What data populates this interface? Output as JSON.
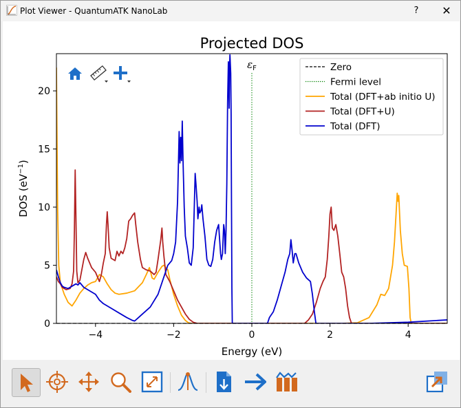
{
  "window": {
    "title": "Plot Viewer - QuantumATK NanoLab",
    "help_label": "?",
    "close_label": "✕"
  },
  "plot_toolbar": {
    "items": [
      {
        "name": "home-icon"
      },
      {
        "name": "ruler-icon"
      },
      {
        "name": "add-icon"
      }
    ]
  },
  "bottom_toolbar": {
    "items": [
      {
        "name": "select-cursor-icon",
        "active": true
      },
      {
        "name": "crosshair-icon"
      },
      {
        "name": "pan-icon"
      },
      {
        "name": "zoom-icon"
      },
      {
        "name": "fit-view-icon"
      },
      {
        "name": "peak-analysis-icon"
      },
      {
        "name": "export-icon"
      },
      {
        "name": "arrow-icon"
      },
      {
        "name": "data-icon"
      },
      {
        "name": "popout-icon"
      }
    ]
  },
  "colors": {
    "dft_u_abinitio": "#ffa500",
    "dft_u": "#b22222",
    "dft": "#0000cd",
    "fermi": "#008000",
    "zero": "#000000",
    "toolbar_orange": "#d2691e",
    "toolbar_blue": "#1e6fc8"
  },
  "chart_data": {
    "type": "line",
    "title": "Projected DOS",
    "xlabel": "Energy (eV)",
    "ylabel_main": "DOS (eV",
    "ylabel_sup": "−1",
    "ylabel_end": ")",
    "xlim": [
      -5,
      5
    ],
    "ylim": [
      0,
      23.2
    ],
    "xticks": [
      -4,
      -2,
      0,
      2,
      4
    ],
    "xtick_labels": [
      "−4",
      "−2",
      "0",
      "2",
      "4"
    ],
    "yticks": [
      0,
      5,
      10,
      15,
      20
    ],
    "ytick_labels": [
      "0",
      "5",
      "10",
      "15",
      "20"
    ],
    "fermi_level": 0,
    "fermi_label": "ε",
    "fermi_label_sub": "F",
    "legend_position": "top-right",
    "legend": [
      {
        "label": "Zero",
        "style": "dashed",
        "color": "#000000"
      },
      {
        "label": "Fermi level",
        "style": "dotted",
        "color": "#008000"
      },
      {
        "label": "Total (DFT+ab initio U)",
        "style": "solid",
        "color": "#ffa500"
      },
      {
        "label": "Total (DFT+U)",
        "style": "solid",
        "color": "#b22222"
      },
      {
        "label": "Total (DFT)",
        "style": "solid",
        "color": "#0000cd"
      }
    ],
    "series": [
      {
        "name": "Total (DFT+ab initio U)",
        "color": "#ffa500",
        "points": [
          [
            -5.0,
            22.0
          ],
          [
            -4.97,
            10.0
          ],
          [
            -4.94,
            5.0
          ],
          [
            -4.9,
            3.5
          ],
          [
            -4.8,
            2.5
          ],
          [
            -4.7,
            1.8
          ],
          [
            -4.6,
            1.5
          ],
          [
            -4.5,
            2.0
          ],
          [
            -4.4,
            2.6
          ],
          [
            -4.3,
            3.0
          ],
          [
            -4.2,
            3.3
          ],
          [
            -4.1,
            3.5
          ],
          [
            -4.0,
            3.6
          ],
          [
            -3.9,
            4.2
          ],
          [
            -3.8,
            4.0
          ],
          [
            -3.7,
            3.4
          ],
          [
            -3.6,
            2.9
          ],
          [
            -3.5,
            2.6
          ],
          [
            -3.4,
            2.5
          ],
          [
            -3.2,
            2.6
          ],
          [
            -3.0,
            2.8
          ],
          [
            -2.8,
            3.5
          ],
          [
            -2.7,
            4.2
          ],
          [
            -2.62,
            4.8
          ],
          [
            -2.55,
            3.9
          ],
          [
            -2.5,
            3.8
          ],
          [
            -2.4,
            4.4
          ],
          [
            -2.3,
            4.9
          ],
          [
            -2.25,
            5.0
          ],
          [
            -2.2,
            4.8
          ],
          [
            -2.15,
            4.6
          ],
          [
            -2.1,
            3.8
          ],
          [
            -2.0,
            2.5
          ],
          [
            -1.9,
            1.5
          ],
          [
            -1.8,
            0.7
          ],
          [
            -1.7,
            0.25
          ],
          [
            -1.62,
            0.05
          ],
          [
            -1.55,
            0.0
          ],
          [
            1.5,
            0.0
          ],
          [
            2.3,
            0.0
          ],
          [
            2.7,
            0.05
          ],
          [
            3.0,
            0.5
          ],
          [
            3.2,
            1.6
          ],
          [
            3.3,
            2.5
          ],
          [
            3.4,
            2.4
          ],
          [
            3.5,
            3.0
          ],
          [
            3.6,
            5.0
          ],
          [
            3.65,
            7.0
          ],
          [
            3.7,
            10.0
          ],
          [
            3.72,
            11.2
          ],
          [
            3.74,
            10.5
          ],
          [
            3.76,
            11.0
          ],
          [
            3.8,
            8.0
          ],
          [
            3.85,
            6.0
          ],
          [
            3.9,
            5.0
          ],
          [
            3.98,
            4.9
          ],
          [
            4.02,
            3.0
          ],
          [
            4.05,
            0.5
          ],
          [
            4.08,
            0.0
          ],
          [
            5.0,
            0.0
          ]
        ]
      },
      {
        "name": "Total (DFT+U)",
        "color": "#b22222",
        "points": [
          [
            -5.0,
            4.0
          ],
          [
            -4.95,
            3.6
          ],
          [
            -4.9,
            3.4
          ],
          [
            -4.85,
            3.1
          ],
          [
            -4.8,
            3.0
          ],
          [
            -4.75,
            2.9
          ],
          [
            -4.7,
            2.95
          ],
          [
            -4.65,
            3.0
          ],
          [
            -4.6,
            3.4
          ],
          [
            -4.56,
            4.5
          ],
          [
            -4.54,
            8.0
          ],
          [
            -4.52,
            13.2
          ],
          [
            -4.5,
            9.0
          ],
          [
            -4.48,
            4.5
          ],
          [
            -4.45,
            3.5
          ],
          [
            -4.4,
            3.7
          ],
          [
            -4.3,
            5.5
          ],
          [
            -4.25,
            6.1
          ],
          [
            -4.2,
            5.6
          ],
          [
            -4.1,
            4.8
          ],
          [
            -4.0,
            4.4
          ],
          [
            -3.95,
            4.0
          ],
          [
            -3.9,
            3.6
          ],
          [
            -3.85,
            4.2
          ],
          [
            -3.8,
            5.2
          ],
          [
            -3.75,
            6.0
          ],
          [
            -3.72,
            8.5
          ],
          [
            -3.7,
            9.6
          ],
          [
            -3.68,
            8.5
          ],
          [
            -3.65,
            6.5
          ],
          [
            -3.6,
            5.6
          ],
          [
            -3.5,
            5.4
          ],
          [
            -3.45,
            6.2
          ],
          [
            -3.4,
            5.8
          ],
          [
            -3.35,
            6.2
          ],
          [
            -3.3,
            6.0
          ],
          [
            -3.25,
            6.5
          ],
          [
            -3.2,
            7.3
          ],
          [
            -3.15,
            8.8
          ],
          [
            -3.1,
            9.0
          ],
          [
            -3.05,
            9.3
          ],
          [
            -3.0,
            9.5
          ],
          [
            -2.97,
            8.5
          ],
          [
            -2.92,
            7.0
          ],
          [
            -2.85,
            5.5
          ],
          [
            -2.8,
            4.8
          ],
          [
            -2.7,
            4.6
          ],
          [
            -2.6,
            4.5
          ],
          [
            -2.5,
            4.2
          ],
          [
            -2.45,
            4.4
          ],
          [
            -2.4,
            5.5
          ],
          [
            -2.33,
            7.2
          ],
          [
            -2.3,
            8.2
          ],
          [
            -2.28,
            7.0
          ],
          [
            -2.25,
            5.8
          ],
          [
            -2.2,
            4.2
          ],
          [
            -2.1,
            3.6
          ],
          [
            -2.0,
            2.8
          ],
          [
            -1.9,
            2.0
          ],
          [
            -1.8,
            1.4
          ],
          [
            -1.7,
            0.8
          ],
          [
            -1.6,
            0.35
          ],
          [
            -1.5,
            0.1
          ],
          [
            -1.4,
            0.0
          ],
          [
            1.35,
            0.0
          ],
          [
            1.45,
            0.3
          ],
          [
            1.55,
            0.8
          ],
          [
            1.65,
            1.8
          ],
          [
            1.75,
            3.0
          ],
          [
            1.82,
            3.6
          ],
          [
            1.88,
            4.0
          ],
          [
            1.93,
            5.5
          ],
          [
            1.97,
            7.5
          ],
          [
            2.0,
            9.4
          ],
          [
            2.03,
            10.0
          ],
          [
            2.06,
            8.2
          ],
          [
            2.1,
            8.0
          ],
          [
            2.15,
            8.5
          ],
          [
            2.2,
            7.5
          ],
          [
            2.25,
            6.0
          ],
          [
            2.3,
            4.4
          ],
          [
            2.35,
            4.0
          ],
          [
            2.4,
            3.0
          ],
          [
            2.45,
            1.5
          ],
          [
            2.5,
            0.5
          ],
          [
            2.55,
            0.0
          ],
          [
            5.0,
            0.0
          ]
        ]
      },
      {
        "name": "Total (DFT)",
        "color": "#0000cd",
        "points": [
          [
            -5.0,
            4.6
          ],
          [
            -4.95,
            4.0
          ],
          [
            -4.9,
            3.5
          ],
          [
            -4.85,
            3.2
          ],
          [
            -4.8,
            3.1
          ],
          [
            -4.7,
            3.0
          ],
          [
            -4.6,
            3.2
          ],
          [
            -4.5,
            3.4
          ],
          [
            -4.45,
            3.3
          ],
          [
            -4.4,
            3.5
          ],
          [
            -4.35,
            3.3
          ],
          [
            -4.3,
            3.1
          ],
          [
            -4.2,
            2.9
          ],
          [
            -4.1,
            2.7
          ],
          [
            -4.0,
            2.5
          ],
          [
            -3.9,
            2.0
          ],
          [
            -3.8,
            1.7
          ],
          [
            -3.6,
            1.3
          ],
          [
            -3.4,
            0.9
          ],
          [
            -3.2,
            0.5
          ],
          [
            -3.05,
            0.25
          ],
          [
            -3.0,
            0.2
          ],
          [
            -2.9,
            0.5
          ],
          [
            -2.8,
            0.8
          ],
          [
            -2.6,
            1.4
          ],
          [
            -2.4,
            2.5
          ],
          [
            -2.25,
            4.0
          ],
          [
            -2.15,
            5.0
          ],
          [
            -2.05,
            5.4
          ],
          [
            -2.0,
            6.0
          ],
          [
            -1.95,
            7.0
          ],
          [
            -1.9,
            10.5
          ],
          [
            -1.86,
            16.5
          ],
          [
            -1.84,
            13.8
          ],
          [
            -1.82,
            16.0
          ],
          [
            -1.8,
            14.0
          ],
          [
            -1.78,
            17.4
          ],
          [
            -1.76,
            14.0
          ],
          [
            -1.73,
            10.0
          ],
          [
            -1.7,
            7.5
          ],
          [
            -1.65,
            6.5
          ],
          [
            -1.6,
            5.2
          ],
          [
            -1.55,
            5.0
          ],
          [
            -1.5,
            6.5
          ],
          [
            -1.45,
            12.9
          ],
          [
            -1.43,
            12.0
          ],
          [
            -1.4,
            10.5
          ],
          [
            -1.38,
            9.0
          ],
          [
            -1.35,
            10.0
          ],
          [
            -1.33,
            9.5
          ],
          [
            -1.3,
            9.7
          ],
          [
            -1.28,
            10.2
          ],
          [
            -1.25,
            9.0
          ],
          [
            -1.2,
            7.5
          ],
          [
            -1.15,
            5.5
          ],
          [
            -1.1,
            5.0
          ],
          [
            -1.05,
            4.9
          ],
          [
            -1.0,
            5.5
          ],
          [
            -0.95,
            7.0
          ],
          [
            -0.9,
            8.0
          ],
          [
            -0.85,
            8.5
          ],
          [
            -0.83,
            7.5
          ],
          [
            -0.8,
            6.0
          ],
          [
            -0.78,
            5.5
          ],
          [
            -0.75,
            6.0
          ],
          [
            -0.72,
            8.5
          ],
          [
            -0.7,
            8.0
          ],
          [
            -0.68,
            6.0
          ],
          [
            -0.66,
            8.0
          ],
          [
            -0.64,
            12.0
          ],
          [
            -0.62,
            19.0
          ],
          [
            -0.6,
            22.5
          ],
          [
            -0.58,
            18.5
          ],
          [
            -0.57,
            22.0
          ],
          [
            -0.56,
            23.1
          ],
          [
            -0.54,
            21.5
          ],
          [
            -0.53,
            18.0
          ],
          [
            -0.52,
            10.0
          ],
          [
            -0.51,
            3.0
          ],
          [
            -0.5,
            0.0
          ],
          [
            0.4,
            0.0
          ],
          [
            0.45,
            0.5
          ],
          [
            0.55,
            1.0
          ],
          [
            0.65,
            2.0
          ],
          [
            0.75,
            3.2
          ],
          [
            0.85,
            4.4
          ],
          [
            0.92,
            5.5
          ],
          [
            0.97,
            6.0
          ],
          [
            1.0,
            7.2
          ],
          [
            1.03,
            6.3
          ],
          [
            1.06,
            5.2
          ],
          [
            1.1,
            6.0
          ],
          [
            1.13,
            6.0
          ],
          [
            1.2,
            5.2
          ],
          [
            1.3,
            4.4
          ],
          [
            1.4,
            3.9
          ],
          [
            1.5,
            3.6
          ],
          [
            1.55,
            2.5
          ],
          [
            1.6,
            1.0
          ],
          [
            1.64,
            0.0
          ],
          [
            3.0,
            0.0
          ],
          [
            4.0,
            0.1
          ],
          [
            5.0,
            0.3
          ]
        ]
      }
    ]
  }
}
